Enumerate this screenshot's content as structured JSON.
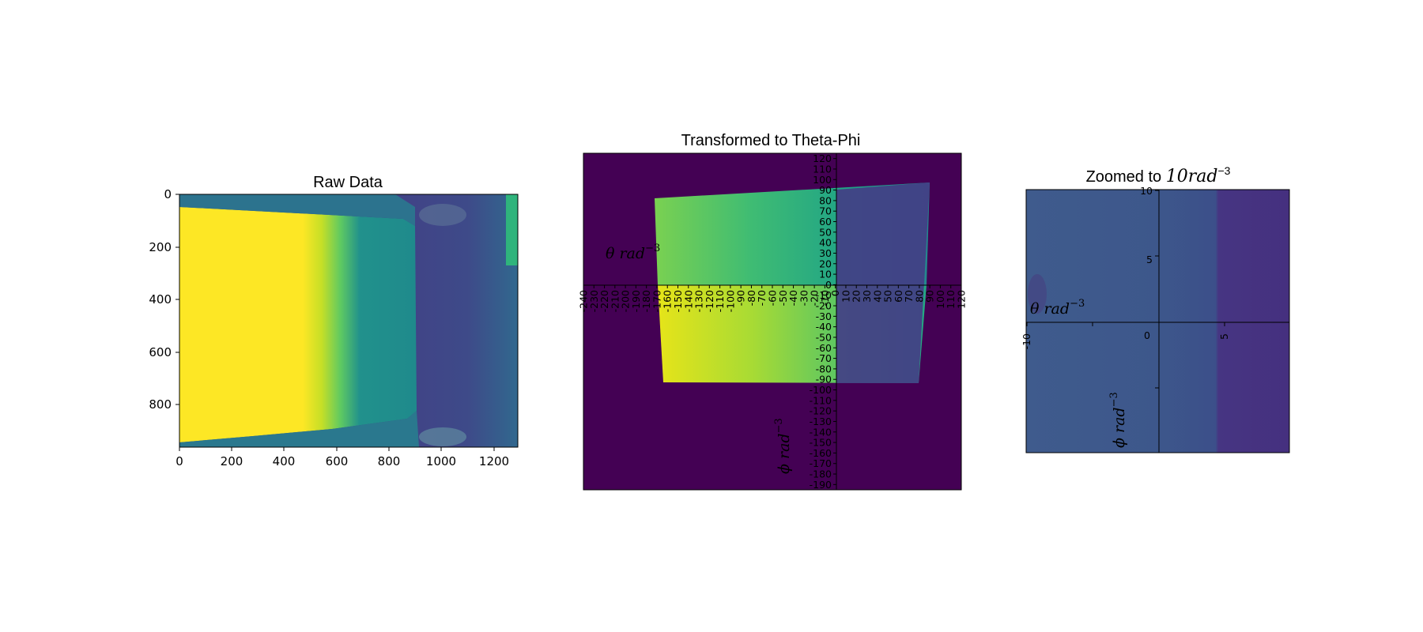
{
  "chart_data": [
    {
      "type": "heatmap",
      "title": "Raw Data",
      "x_ticks": [
        "0",
        "200",
        "400",
        "600",
        "800",
        "1000",
        "1200"
      ],
      "y_ticks": [
        "0",
        "200",
        "400",
        "600",
        "800"
      ],
      "xlim": [
        0,
        1290
      ],
      "ylim": [
        960,
        0
      ],
      "colormap": "viridis"
    },
    {
      "type": "heatmap",
      "title": "Transformed to Theta-Phi",
      "x_ticks": [
        "-240",
        "-230",
        "-220",
        "-210",
        "-200",
        "-190",
        "-180",
        "-170",
        "-160",
        "-150",
        "-140",
        "-130",
        "-120",
        "-110",
        "-100",
        "-90",
        "-80",
        "-70",
        "-60",
        "-50",
        "-40",
        "-30",
        "-20",
        "-10",
        "0",
        "10",
        "20",
        "30",
        "40",
        "50",
        "60",
        "70",
        "80",
        "90",
        "100",
        "110",
        "120"
      ],
      "y_ticks": [
        "120",
        "110",
        "100",
        "90",
        "80",
        "70",
        "60",
        "50",
        "40",
        "30",
        "20",
        "10",
        "0",
        "-10",
        "-20",
        "-30",
        "-40",
        "-50",
        "-60",
        "-70",
        "-80",
        "-90",
        "-100",
        "-110",
        "-120",
        "-130",
        "-140",
        "-150",
        "-160",
        "-170",
        "-180",
        "-190"
      ],
      "xlabel": "θ  rad",
      "ylabel": "ϕ  rad",
      "unit_exponent": "−3",
      "xlim": [
        -240,
        120
      ],
      "ylim": [
        -195,
        125
      ],
      "colormap": "viridis"
    },
    {
      "type": "heatmap",
      "title_prefix": "Zoomed to ",
      "title_math": "10rad",
      "title_exp": "−3",
      "x_ticks": [
        "-10",
        "0",
        "5"
      ],
      "y_ticks": [
        "10",
        "5"
      ],
      "xlabel": "θ  rad",
      "ylabel": "ϕ  rad",
      "unit_exponent": "−3",
      "xlim": [
        -10,
        10
      ],
      "ylim": [
        -10,
        10
      ],
      "colormap": "viridis"
    }
  ]
}
